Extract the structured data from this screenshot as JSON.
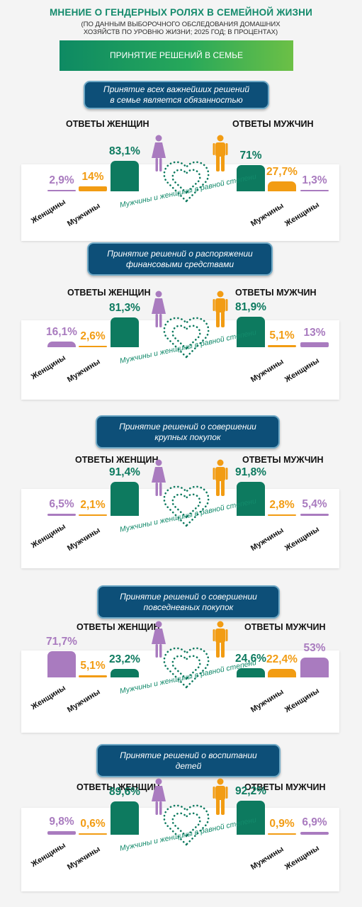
{
  "header": {
    "title": "МНЕНИЕ О ГЕНДЕРНЫХ РОЛЯХ В СЕМЕЙНОЙ ЖИЗНИ",
    "subtitle_line1": "(ПО ДАННЫМ ВЫБОРОЧНОГО ОБСЛЕДОВАНИЯ ДОМАШНИХ",
    "subtitle_line2": "ХОЗЯЙСТВ ПО УРОВНЮ ЖИЗНИ; 2025 ГОД; В ПРОЦЕНТАХ)",
    "banner": "ПРИНЯТИЕ РЕШЕНИЙ В СЕМЬЕ"
  },
  "labels": {
    "women_answers": "ОТВЕТЫ ЖЕНЩИН",
    "men_answers": "ОТВЕТЫ МУЖЧИН",
    "women": "Женщины",
    "men": "Мужчины",
    "both_equally": "Мужчины и женщины в равной степени"
  },
  "colors": {
    "women": "#a97bbf",
    "men": "#f29c13",
    "equal": "#0d7a5f",
    "pill": "#0d4f78"
  },
  "icons": [
    "woman-icon",
    "man-icon",
    "dotted-heart-icon"
  ],
  "chart_data": [
    {
      "type": "bar",
      "question_line1": "Принятие всех важнейших решений",
      "question_line2": "в семье является обязанностью",
      "categories": [
        "Женщины",
        "Мужчины",
        "Мужчины и женщины в равной степени"
      ],
      "women_answers": {
        "women": "2,9%",
        "men": "14%",
        "equal": "83,1%"
      },
      "men_answers": {
        "equal": "71%",
        "men": "27,7%",
        "women": "1,3%"
      },
      "values_women_answers": [
        2.9,
        14,
        83.1
      ],
      "values_men_answers": [
        1.3,
        27.7,
        71
      ]
    },
    {
      "type": "bar",
      "question_line1": "Принятие решений о распоряжении",
      "question_line2": "финансовыми средствами",
      "categories": [
        "Женщины",
        "Мужчины",
        "Мужчины и женщины в равной степени"
      ],
      "women_answers": {
        "women": "16,1%",
        "men": "2,6%",
        "equal": "81,3%"
      },
      "men_answers": {
        "equal": "81,9%",
        "men": "5,1%",
        "women": "13%"
      },
      "values_women_answers": [
        16.1,
        2.6,
        81.3
      ],
      "values_men_answers": [
        13,
        5.1,
        81.9
      ]
    },
    {
      "type": "bar",
      "question_line1": "Принятие решений о совершении",
      "question_line2": "крупных покупок",
      "categories": [
        "Женщины",
        "Мужчины",
        "Мужчины и женщины в равной степени"
      ],
      "women_answers": {
        "women": "6,5%",
        "men": "2,1%",
        "equal": "91,4%"
      },
      "men_answers": {
        "equal": "91,8%",
        "men": "2,8%",
        "women": "5,4%"
      },
      "values_women_answers": [
        6.5,
        2.1,
        91.4
      ],
      "values_men_answers": [
        5.4,
        2.8,
        91.8
      ]
    },
    {
      "type": "bar",
      "question_line1": "Принятие решений о совершении",
      "question_line2": "повседневных покупок",
      "categories": [
        "Женщины",
        "Мужчины",
        "Мужчины и женщины в равной степени"
      ],
      "women_answers": {
        "women": "71,7%",
        "men": "5,1%",
        "equal": "23,2%"
      },
      "men_answers": {
        "equal": "24,6%",
        "men": "22,4%",
        "women": "53%"
      },
      "values_women_answers": [
        71.7,
        5.1,
        23.2
      ],
      "values_men_answers": [
        53,
        22.4,
        24.6
      ]
    },
    {
      "type": "bar",
      "question_line1": "Принятие решений о воспитании",
      "question_line2": "детей",
      "categories": [
        "Женщины",
        "Мужчины",
        "Мужчины и женщины в равной степени"
      ],
      "women_answers": {
        "women": "9,8%",
        "men": "0,6%",
        "equal": "89,6%"
      },
      "men_answers": {
        "equal": "92,2%",
        "men": "0,9%",
        "women": "6,9%"
      },
      "values_women_answers": [
        9.8,
        0.6,
        89.6
      ],
      "values_men_answers": [
        6.9,
        0.9,
        92.2
      ]
    }
  ]
}
